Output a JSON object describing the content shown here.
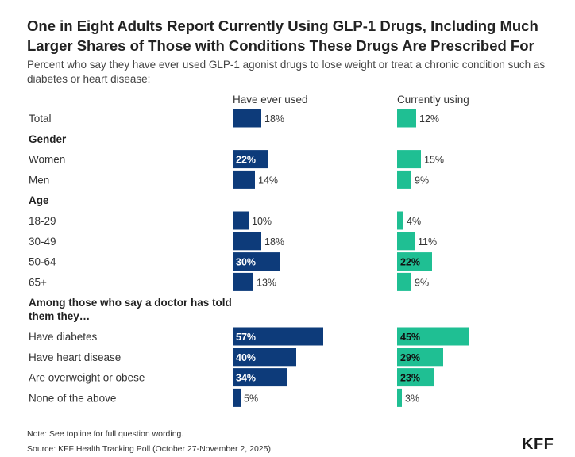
{
  "title": "One in Eight Adults Report Currently Using GLP-1 Drugs, Including Much Larger Shares of Those with Conditions These Drugs Are Prescribed For",
  "subtitle": "Percent who say they have ever used GLP-1 agonist drugs to lose weight or treat a chronic condition such as diabetes or heart disease:",
  "note": "Note: See topline for full question wording.",
  "source": "Source: KFF Health Tracking Poll (October 27-November 2, 2025)",
  "logo": "KFF",
  "colors": {
    "ever_used": "#0d3b7a",
    "currently_using": "#1fbf93",
    "text": "#333333"
  },
  "chart_data": {
    "type": "bar",
    "orientation": "horizontal",
    "value_suffix": "%",
    "series": [
      {
        "name": "Have ever used",
        "color": "#0d3b7a"
      },
      {
        "name": "Currently using",
        "color": "#1fbf93"
      }
    ],
    "rows": [
      {
        "kind": "item",
        "label": "Total",
        "values": [
          18,
          12
        ]
      },
      {
        "kind": "header",
        "label": "Gender"
      },
      {
        "kind": "item",
        "label": "Women",
        "values": [
          22,
          15
        ]
      },
      {
        "kind": "item",
        "label": "Men",
        "values": [
          14,
          9
        ]
      },
      {
        "kind": "header",
        "label": "Age"
      },
      {
        "kind": "item",
        "label": "18-29",
        "values": [
          10,
          4
        ]
      },
      {
        "kind": "item",
        "label": "30-49",
        "values": [
          18,
          11
        ]
      },
      {
        "kind": "item",
        "label": "50-64",
        "values": [
          30,
          22
        ]
      },
      {
        "kind": "item",
        "label": "65+",
        "values": [
          13,
          9
        ]
      },
      {
        "kind": "header",
        "label": "Among those who say a doctor has told them they…"
      },
      {
        "kind": "item",
        "label": "Have diabetes",
        "values": [
          57,
          45
        ]
      },
      {
        "kind": "item",
        "label": "Have heart disease",
        "values": [
          40,
          29
        ]
      },
      {
        "kind": "item",
        "label": "Are overweight or obese",
        "values": [
          34,
          23
        ]
      },
      {
        "kind": "item",
        "label": "None of the above",
        "values": [
          5,
          3
        ]
      }
    ]
  }
}
